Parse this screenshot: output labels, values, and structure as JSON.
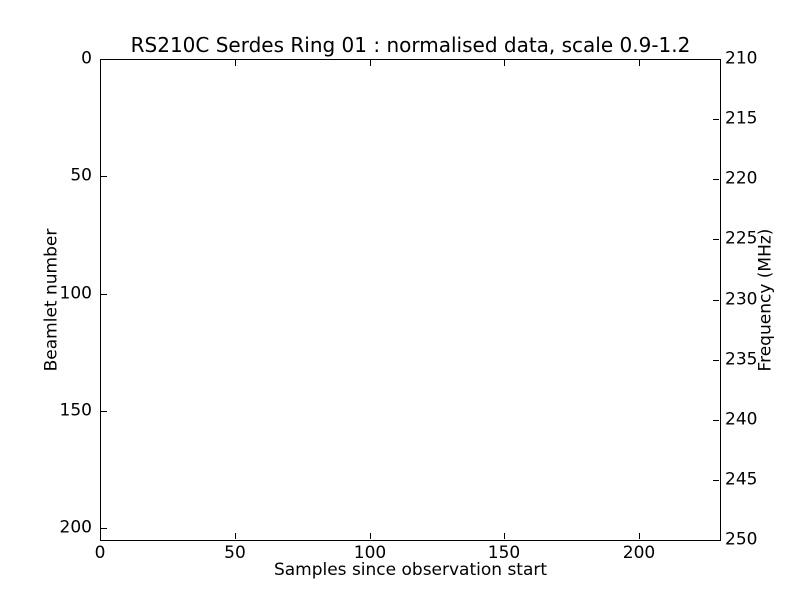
{
  "figure": {
    "background_color": "#ffffff",
    "axes_line_color": "#000000",
    "text_color": "#000000"
  },
  "chart_data": {
    "type": "heatmap",
    "title": "RS210C Serdes Ring 01 : normalised data, scale 0.9-1.2",
    "xlabel": "Samples since observation start",
    "ylabel_left": "Beamlet number",
    "ylabel_right": "Frequency (MHz)",
    "x_ticks": [
      0,
      50,
      100,
      150,
      200
    ],
    "y_ticks_left": [
      0,
      50,
      100,
      150,
      200
    ],
    "y_ticks_right": [
      210,
      215,
      220,
      225,
      230,
      235,
      240,
      245,
      250
    ],
    "xlim": [
      0,
      230
    ],
    "ylim_left": [
      205,
      0
    ],
    "ylim_right": [
      210,
      250
    ],
    "grid": false,
    "legend": false,
    "values": []
  }
}
